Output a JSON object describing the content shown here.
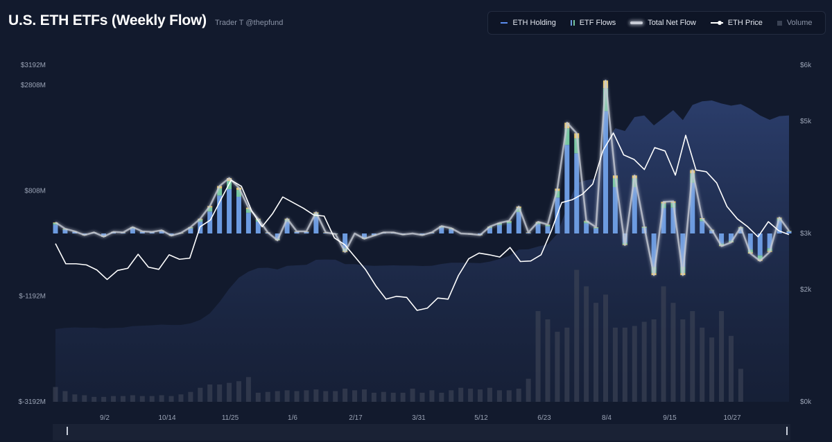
{
  "header": {
    "title": "U.S. ETH ETFs (Weekly Flow)",
    "credit": "Trader T @thepfund"
  },
  "legend": [
    {
      "label": "ETH Holding",
      "icon": "line-icon",
      "color": "#5b8df0",
      "active": true
    },
    {
      "label": "ETF Flows",
      "icon": "bars-icon",
      "color": "#6c9be0",
      "active": true
    },
    {
      "label": "Total Net Flow",
      "icon": "glow-line-icon",
      "color": "#c8ccd6",
      "active": true
    },
    {
      "label": "ETH Price",
      "icon": "price-line-icon",
      "color": "#ffffff",
      "active": true
    },
    {
      "label": "Volume",
      "icon": "square-icon",
      "color": "#3a4254",
      "active": false
    }
  ],
  "chart_data": {
    "type": "bar",
    "y_left_ticks": [
      "$3192M",
      "$2808M",
      "$808M",
      "$-1192M",
      "$-3192M"
    ],
    "y_right_ticks": [
      "$6k",
      "$5k",
      "$3k",
      "$2k",
      "$0k"
    ],
    "x_ticks": [
      "9/2",
      "10/14",
      "11/25",
      "1/6",
      "2/17",
      "3/31",
      "5/12",
      "6/23",
      "8/4",
      "9/15",
      "10/27"
    ],
    "y_left_range": [
      -3192,
      3192
    ],
    "y_right_range": [
      0,
      6000
    ],
    "series": [
      {
        "name": "ETF Flows",
        "stack": "flows",
        "colors": [
          "#6c9be0",
          "#74c7a0",
          "#f0c95a"
        ]
      },
      {
        "name": "Total Net Flow",
        "values": [
          210,
          90,
          40,
          -30,
          20,
          -60,
          30,
          20,
          120,
          40,
          30,
          60,
          -40,
          10,
          120,
          280,
          520,
          900,
          1050,
          870,
          490,
          280,
          20,
          -130,
          280,
          40,
          40,
          400,
          20,
          -10,
          -350,
          0,
          -100,
          -40,
          20,
          20,
          -20,
          0,
          -30,
          20,
          140,
          100,
          0,
          -10,
          -30,
          130,
          200,
          240,
          510,
          20,
          220,
          170,
          850,
          2100,
          1900,
          240,
          120,
          2900,
          1100,
          -220,
          1100,
          130,
          -790,
          600,
          610,
          -790,
          1200,
          290,
          70,
          -240,
          -170,
          120,
          -380,
          -520,
          -350,
          300,
          50
        ],
        "colors_note": "glow"
      },
      {
        "name": "ETH Price",
        "values": [
          2820,
          2460,
          2460,
          2440,
          2350,
          2180,
          2340,
          2380,
          2630,
          2400,
          2360,
          2620,
          2540,
          2560,
          3120,
          3240,
          3600,
          3950,
          3840,
          3400,
          3120,
          3350,
          3650,
          3550,
          3450,
          3330,
          3310,
          2920,
          2800,
          2580,
          2360,
          2070,
          1830,
          1880,
          1860,
          1630,
          1670,
          1850,
          1830,
          2250,
          2550,
          2650,
          2620,
          2580,
          2750,
          2500,
          2510,
          2620,
          3050,
          3550,
          3600,
          3700,
          3880,
          4480,
          4790,
          4400,
          4320,
          4140,
          4530,
          4470,
          4040,
          4750,
          4130,
          4100,
          3900,
          3480,
          3260,
          3120,
          2940,
          3210,
          3050,
          2980
        ]
      },
      {
        "name": "Volume",
        "values": [
          180,
          130,
          90,
          80,
          60,
          60,
          70,
          70,
          80,
          70,
          70,
          80,
          70,
          90,
          120,
          170,
          210,
          210,
          230,
          250,
          300,
          110,
          120,
          130,
          140,
          130,
          140,
          150,
          130,
          130,
          160,
          140,
          150,
          110,
          120,
          110,
          110,
          160,
          110,
          140,
          110,
          140,
          170,
          160,
          150,
          170,
          140,
          140,
          160,
          280,
          1100,
          1000,
          850,
          900,
          1600,
          1400,
          1200,
          1300,
          900,
          900,
          920,
          970,
          1000,
          1400,
          1200,
          1000,
          1100,
          900,
          780,
          1100,
          800,
          400
        ]
      }
    ],
    "grid": false
  }
}
